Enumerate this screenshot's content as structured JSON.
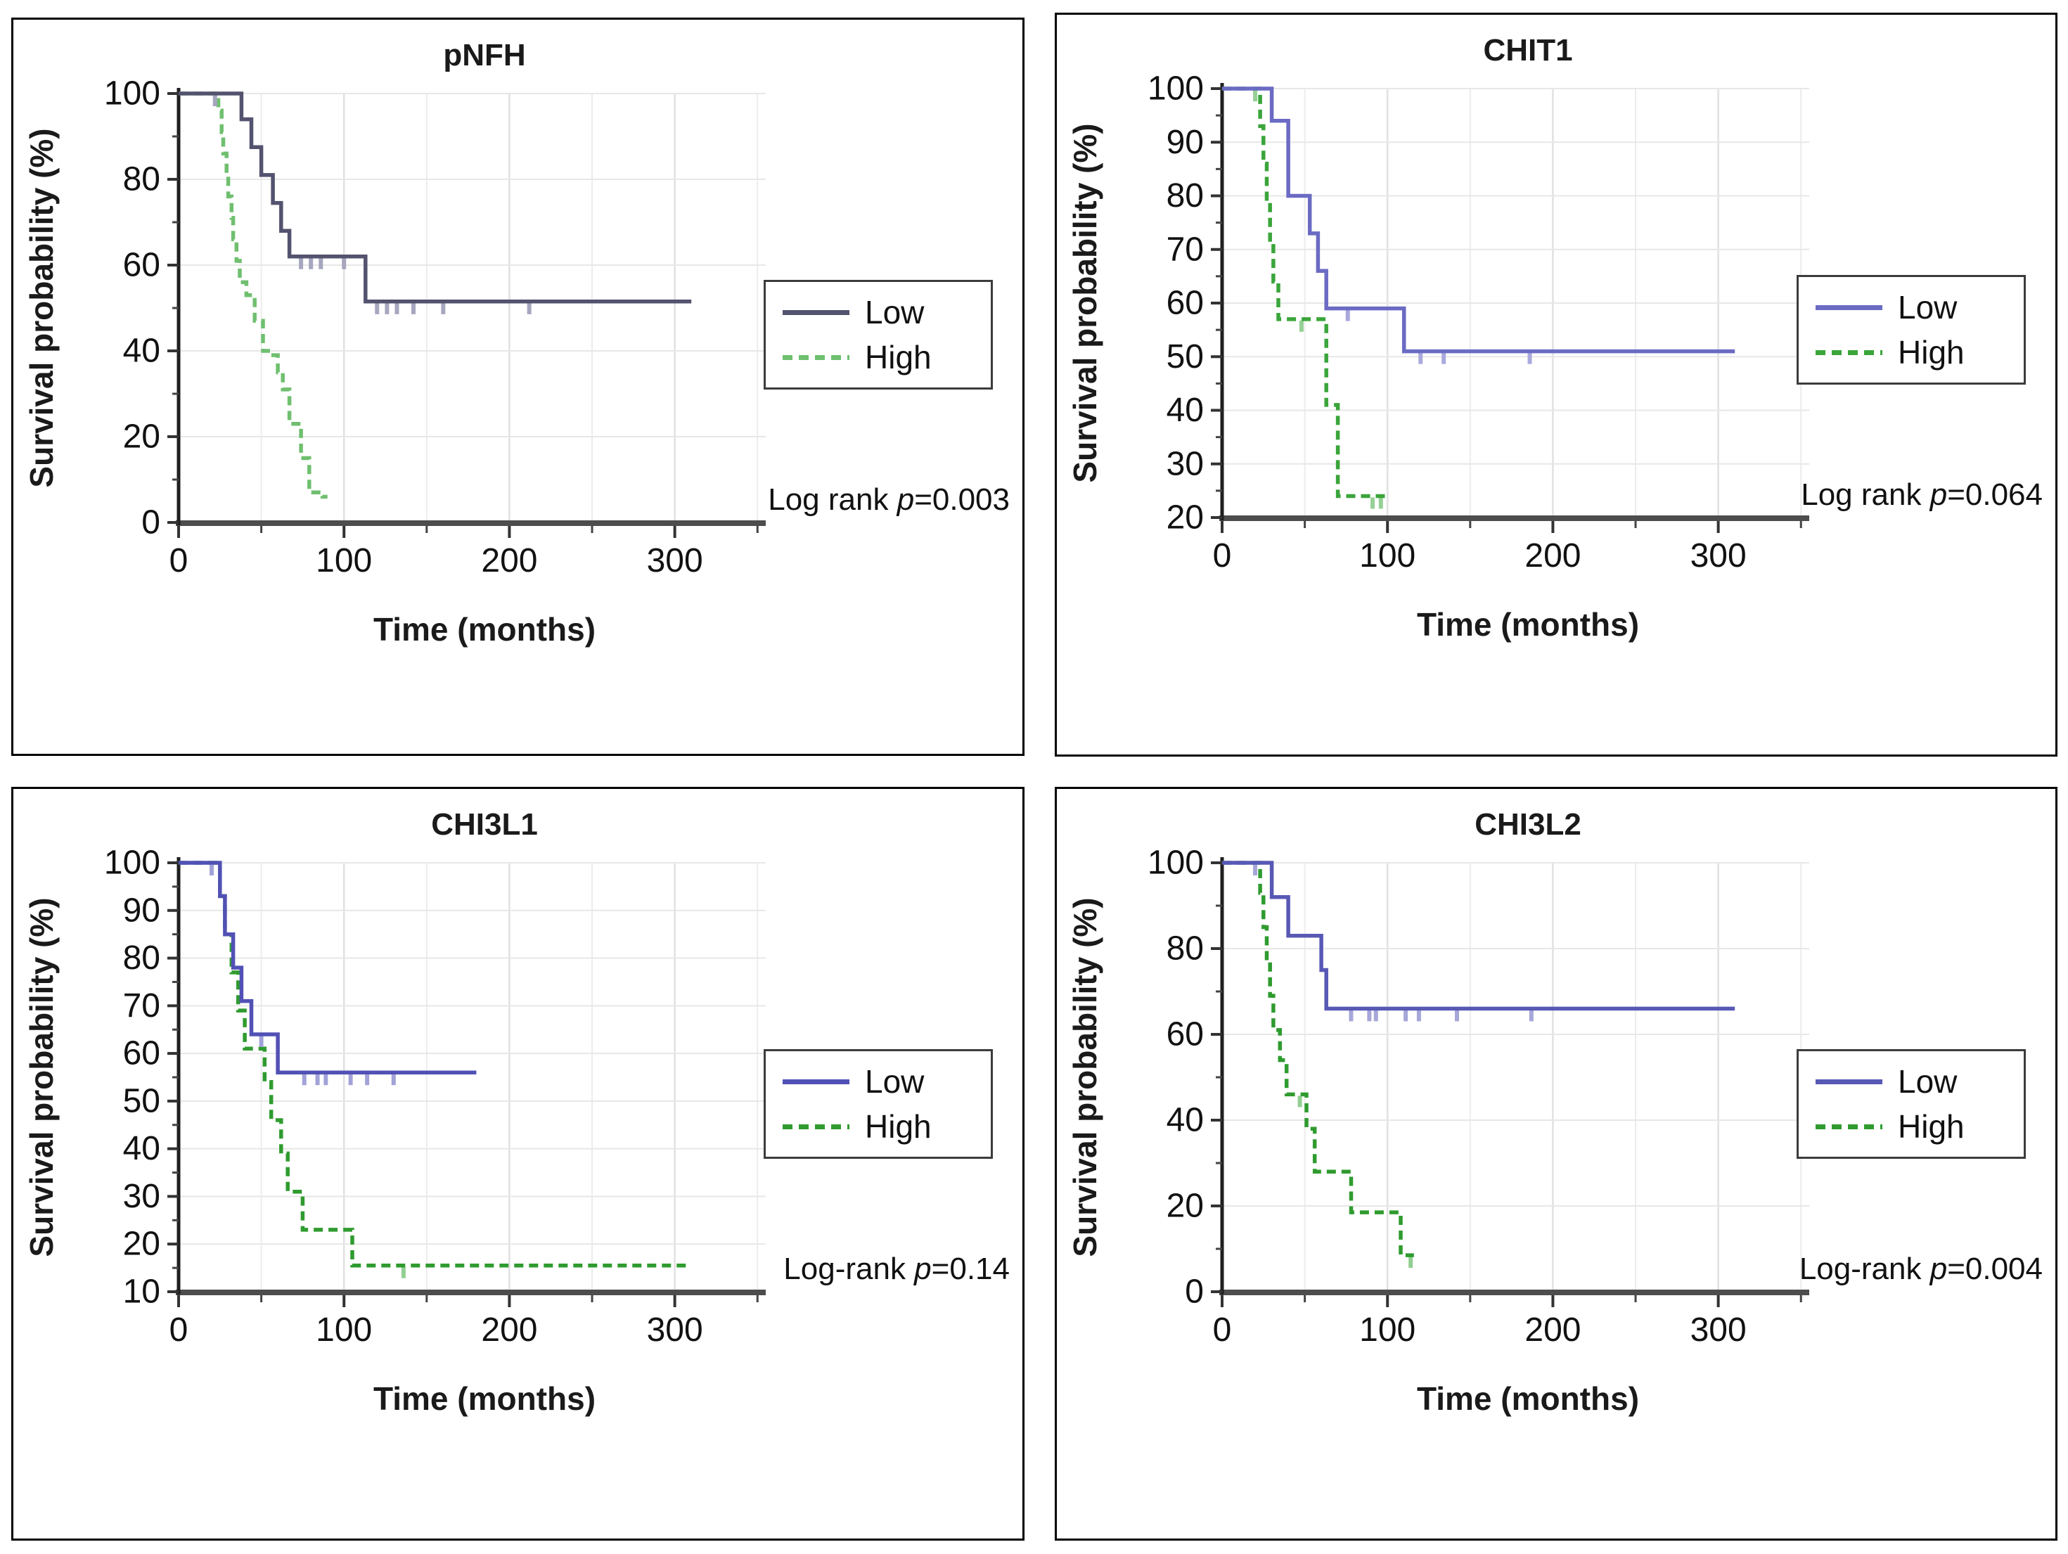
{
  "chart_data": [
    {
      "type": "line",
      "subtype": "kaplan-meier-step",
      "title": "pNFH",
      "xlabel": "Time (months)",
      "ylabel": "Survival probability (%)",
      "log_rank": {
        "prefix": "Log rank ",
        "p_symbol": "p",
        "suffix": "=0.003"
      },
      "xlim": [
        0,
        355
      ],
      "xticks": [
        0,
        100,
        200,
        300
      ],
      "x_minor_step": 50,
      "ylim": [
        0,
        100
      ],
      "yticks": [
        0,
        20,
        40,
        60,
        80,
        100
      ],
      "y_minor_step": 10,
      "grid": true,
      "legend_position": "right",
      "series": [
        {
          "name": "Low",
          "style": "solid",
          "color": "#53536f",
          "censor_color": "#a6a6bf",
          "points": [
            [
              0,
              100
            ],
            [
              38,
              100
            ],
            [
              38,
              94
            ],
            [
              44,
              94
            ],
            [
              44,
              87.5
            ],
            [
              50,
              87.5
            ],
            [
              50,
              81
            ],
            [
              57,
              81
            ],
            [
              57,
              74.5
            ],
            [
              62,
              74.5
            ],
            [
              62,
              68
            ],
            [
              67,
              68
            ],
            [
              67,
              62
            ],
            [
              113,
              62
            ],
            [
              113,
              51.5
            ],
            [
              310,
              51.5
            ]
          ],
          "censors": [
            [
              22,
              100
            ],
            [
              74,
              62
            ],
            [
              80,
              62
            ],
            [
              86,
              62
            ],
            [
              100,
              62
            ],
            [
              120,
              51.5
            ],
            [
              126,
              51.5
            ],
            [
              132,
              51.5
            ],
            [
              142,
              51.5
            ],
            [
              160,
              51.5
            ],
            [
              212,
              51.5
            ]
          ]
        },
        {
          "name": "High",
          "style": "dashed",
          "color": "#6fbf6f",
          "censor_color": "#b4dfb4",
          "points": [
            [
              0,
              100
            ],
            [
              24,
              100
            ],
            [
              24,
              96
            ],
            [
              26,
              96
            ],
            [
              26,
              91
            ],
            [
              27,
              91
            ],
            [
              27,
              86
            ],
            [
              29,
              86
            ],
            [
              29,
              81
            ],
            [
              30,
              81
            ],
            [
              30,
              76
            ],
            [
              32,
              76
            ],
            [
              32,
              71
            ],
            [
              33,
              71
            ],
            [
              33,
              66
            ],
            [
              35,
              66
            ],
            [
              35,
              61
            ],
            [
              37,
              61
            ],
            [
              37,
              56
            ],
            [
              41,
              56
            ],
            [
              41,
              53
            ],
            [
              46,
              53
            ],
            [
              46,
              47
            ],
            [
              51,
              47
            ],
            [
              51,
              40
            ],
            [
              56,
              40
            ],
            [
              56,
              39
            ],
            [
              60,
              39
            ],
            [
              60,
              35
            ],
            [
              63,
              35
            ],
            [
              63,
              31
            ],
            [
              67,
              31
            ],
            [
              67,
              23
            ],
            [
              74,
              23
            ],
            [
              74,
              15
            ],
            [
              79,
              15
            ],
            [
              79,
              7
            ],
            [
              87,
              7
            ],
            [
              87,
              6
            ],
            [
              90,
              6
            ]
          ],
          "censors": []
        }
      ]
    },
    {
      "type": "line",
      "subtype": "kaplan-meier-step",
      "title": "CHIT1",
      "xlabel": "Time (months)",
      "ylabel": "Survival probability (%)",
      "log_rank": {
        "prefix": "Log rank ",
        "p_symbol": "p",
        "suffix": "=0.064"
      },
      "xlim": [
        0,
        355
      ],
      "xticks": [
        0,
        100,
        200,
        300
      ],
      "x_minor_step": 50,
      "ylim": [
        20,
        100
      ],
      "yticks": [
        20,
        30,
        40,
        50,
        60,
        70,
        80,
        90,
        100
      ],
      "y_minor_step": 5,
      "grid": true,
      "legend_position": "right",
      "series": [
        {
          "name": "Low",
          "style": "solid",
          "color": "#6b6bc4",
          "censor_color": "#a9a9dd",
          "points": [
            [
              0,
              100
            ],
            [
              30,
              100
            ],
            [
              30,
              94
            ],
            [
              40,
              94
            ],
            [
              40,
              80
            ],
            [
              53,
              80
            ],
            [
              53,
              73
            ],
            [
              58,
              73
            ],
            [
              58,
              66
            ],
            [
              63,
              66
            ],
            [
              63,
              59
            ],
            [
              110,
              59
            ],
            [
              110,
              51
            ],
            [
              310,
              51
            ]
          ],
          "censors": [
            [
              76,
              59
            ],
            [
              120,
              51
            ],
            [
              134,
              51
            ],
            [
              186,
              51
            ]
          ]
        },
        {
          "name": "High",
          "style": "dashed",
          "color": "#3aa53a",
          "censor_color": "#96d096",
          "points": [
            [
              0,
              100
            ],
            [
              23,
              100
            ],
            [
              23,
              93
            ],
            [
              25,
              93
            ],
            [
              25,
              86
            ],
            [
              27,
              86
            ],
            [
              27,
              79
            ],
            [
              29,
              79
            ],
            [
              29,
              71
            ],
            [
              31,
              71
            ],
            [
              31,
              64
            ],
            [
              34,
              64
            ],
            [
              34,
              57
            ],
            [
              63,
              57
            ],
            [
              63,
              41
            ],
            [
              70,
              41
            ],
            [
              70,
              24
            ],
            [
              100,
              24
            ]
          ],
          "censors": [
            [
              20,
              100
            ],
            [
              48,
              57
            ],
            [
              91,
              24
            ],
            [
              96,
              24
            ]
          ]
        }
      ]
    },
    {
      "type": "line",
      "subtype": "kaplan-meier-step",
      "title": "CHI3L1",
      "xlabel": "Time (months)",
      "ylabel": "Survival probability (%)",
      "log_rank": {
        "prefix": "Log-rank ",
        "p_symbol": "p",
        "suffix": "=0.14"
      },
      "xlim": [
        0,
        355
      ],
      "xticks": [
        0,
        100,
        200,
        300
      ],
      "x_minor_step": 50,
      "ylim": [
        10,
        100
      ],
      "yticks": [
        10,
        20,
        30,
        40,
        50,
        60,
        70,
        80,
        90,
        100
      ],
      "y_minor_step": 5,
      "grid": true,
      "legend_position": "right",
      "series": [
        {
          "name": "Low",
          "style": "solid",
          "color": "#5151b5",
          "censor_color": "#a2a2d8",
          "points": [
            [
              0,
              100
            ],
            [
              25,
              100
            ],
            [
              25,
              93
            ],
            [
              28,
              93
            ],
            [
              28,
              85
            ],
            [
              33,
              85
            ],
            [
              33,
              78
            ],
            [
              38,
              78
            ],
            [
              38,
              71
            ],
            [
              44,
              71
            ],
            [
              44,
              64
            ],
            [
              60,
              64
            ],
            [
              60,
              56
            ],
            [
              180,
              56
            ]
          ],
          "censors": [
            [
              20,
              100
            ],
            [
              50,
              64
            ],
            [
              76,
              56
            ],
            [
              84,
              56
            ],
            [
              89,
              56
            ],
            [
              104,
              56
            ],
            [
              114,
              56
            ],
            [
              130,
              56
            ]
          ]
        },
        {
          "name": "High",
          "style": "dashed",
          "color": "#2f9b2f",
          "censor_color": "#93cf93",
          "points": [
            [
              0,
              100
            ],
            [
              25,
              100
            ],
            [
              25,
              93
            ],
            [
              28,
              93
            ],
            [
              28,
              85
            ],
            [
              32,
              85
            ],
            [
              32,
              77
            ],
            [
              36,
              77
            ],
            [
              36,
              69
            ],
            [
              40,
              69
            ],
            [
              40,
              61
            ],
            [
              52,
              61
            ],
            [
              52,
              54
            ],
            [
              56,
              54
            ],
            [
              56,
              46
            ],
            [
              62,
              46
            ],
            [
              62,
              39
            ],
            [
              66,
              39
            ],
            [
              66,
              31
            ],
            [
              75,
              31
            ],
            [
              75,
              23
            ],
            [
              105,
              23
            ],
            [
              105,
              15.5
            ],
            [
              310,
              15.5
            ]
          ],
          "censors": [
            [
              136,
              15.5
            ]
          ]
        }
      ]
    },
    {
      "type": "line",
      "subtype": "kaplan-meier-step",
      "title": "CHI3L2",
      "xlabel": "Time (months)",
      "ylabel": "Survival probability (%)",
      "log_rank": {
        "prefix": "Log-rank ",
        "p_symbol": "p",
        "suffix": "=0.004"
      },
      "xlim": [
        0,
        355
      ],
      "xticks": [
        0,
        100,
        200,
        300
      ],
      "x_minor_step": 50,
      "ylim": [
        0,
        100
      ],
      "yticks": [
        0,
        20,
        40,
        60,
        80,
        100
      ],
      "y_minor_step": 10,
      "grid": true,
      "legend_position": "right",
      "series": [
        {
          "name": "Low",
          "style": "solid",
          "color": "#5858b5",
          "censor_color": "#a6a6d9",
          "points": [
            [
              0,
              100
            ],
            [
              30,
              100
            ],
            [
              30,
              92
            ],
            [
              40,
              92
            ],
            [
              40,
              83
            ],
            [
              60,
              83
            ],
            [
              60,
              75
            ],
            [
              63,
              75
            ],
            [
              63,
              66
            ],
            [
              310,
              66
            ]
          ],
          "censors": [
            [
              20,
              100
            ],
            [
              78,
              66
            ],
            [
              89,
              66
            ],
            [
              93,
              66
            ],
            [
              111,
              66
            ],
            [
              119,
              66
            ],
            [
              142,
              66
            ],
            [
              187,
              66
            ]
          ]
        },
        {
          "name": "High",
          "style": "dashed",
          "color": "#2f9b2f",
          "censor_color": "#93cf93",
          "points": [
            [
              0,
              100
            ],
            [
              23,
              100
            ],
            [
              23,
              93
            ],
            [
              25,
              93
            ],
            [
              25,
              85
            ],
            [
              27,
              85
            ],
            [
              27,
              77
            ],
            [
              29,
              77
            ],
            [
              29,
              69
            ],
            [
              31,
              69
            ],
            [
              31,
              61
            ],
            [
              35,
              61
            ],
            [
              35,
              54
            ],
            [
              39,
              54
            ],
            [
              39,
              46
            ],
            [
              51,
              46
            ],
            [
              51,
              38
            ],
            [
              56,
              38
            ],
            [
              56,
              28
            ],
            [
              78,
              28
            ],
            [
              78,
              18.5
            ],
            [
              108,
              18.5
            ],
            [
              108,
              8.5
            ],
            [
              116,
              8.5
            ]
          ],
          "censors": [
            [
              47,
              46
            ],
            [
              114,
              8.5
            ]
          ]
        }
      ]
    }
  ]
}
